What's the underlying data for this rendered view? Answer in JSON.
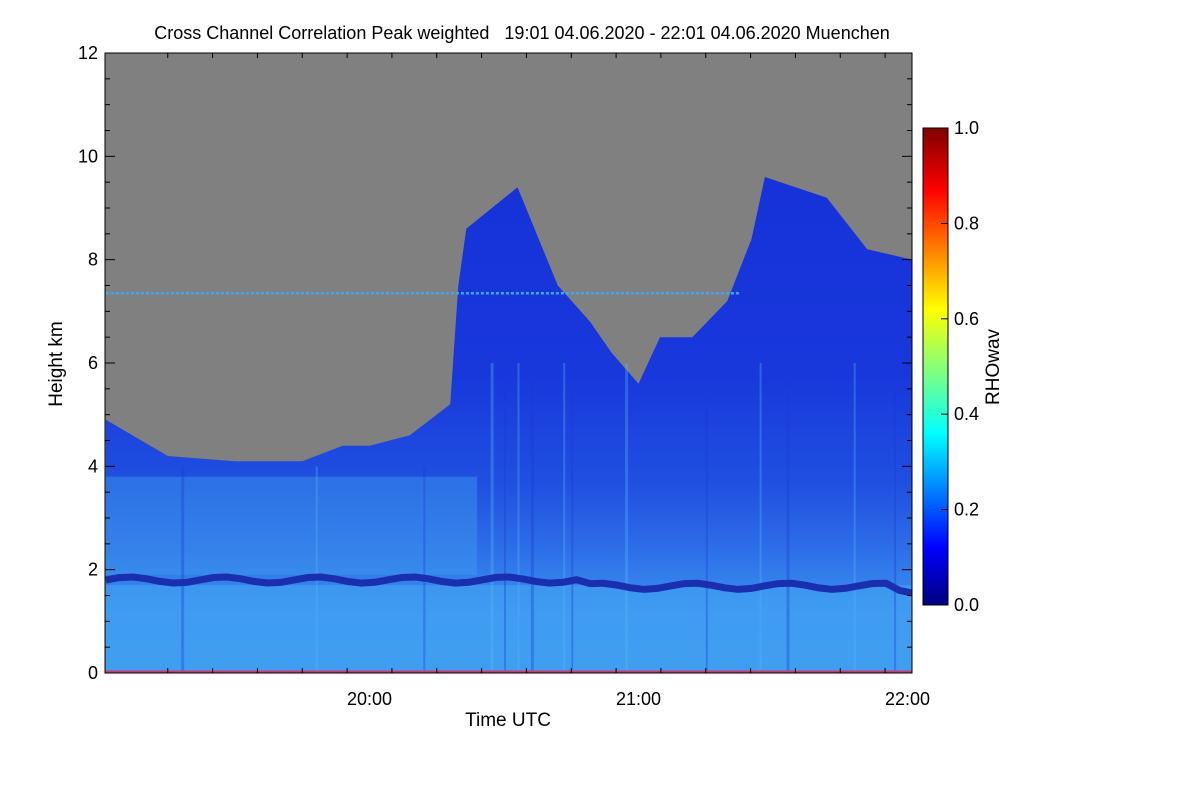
{
  "chart_data": {
    "type": "heatmap",
    "title": "Cross Channel Correlation Peak weighted   19:01 04.06.2020 - 22:01 04.06.2020 Muenchen",
    "xlabel": "Time UTC",
    "ylabel": "Height km",
    "x_range_hours": [
      19.0167,
      22.0167
    ],
    "ylim": [
      0,
      12
    ],
    "x_ticks": [
      {
        "value": 20,
        "label": "20:00"
      },
      {
        "value": 21,
        "label": "21:00"
      },
      {
        "value": 22,
        "label": "22:00"
      }
    ],
    "y_ticks": [
      {
        "value": 0,
        "label": "0"
      },
      {
        "value": 2,
        "label": "2"
      },
      {
        "value": 4,
        "label": "4"
      },
      {
        "value": 6,
        "label": "6"
      },
      {
        "value": 8,
        "label": "8"
      },
      {
        "value": 10,
        "label": "10"
      },
      {
        "value": 12,
        "label": "12"
      }
    ],
    "colorbar": {
      "label": "RHOwav",
      "range": [
        0,
        1
      ],
      "colormap": "jet",
      "ticks": [
        {
          "value": 0.0,
          "label": "0.0"
        },
        {
          "value": 0.2,
          "label": "0.2"
        },
        {
          "value": 0.4,
          "label": "0.4"
        },
        {
          "value": 0.6,
          "label": "0.6"
        },
        {
          "value": 0.8,
          "label": "0.8"
        },
        {
          "value": 1.0,
          "label": "1.0"
        }
      ],
      "placement": "right"
    },
    "no_data_color": "#808080",
    "signal_top_km": [
      [
        19.02,
        4.9
      ],
      [
        19.25,
        4.2
      ],
      [
        19.5,
        4.1
      ],
      [
        19.75,
        4.1
      ],
      [
        19.9,
        4.4
      ],
      [
        20.0,
        4.4
      ],
      [
        20.15,
        4.6
      ],
      [
        20.3,
        5.2
      ],
      [
        20.33,
        7.5
      ],
      [
        20.36,
        8.6
      ],
      [
        20.55,
        9.4
      ],
      [
        20.7,
        7.5
      ],
      [
        20.82,
        6.8
      ],
      [
        20.9,
        6.2
      ],
      [
        21.0,
        5.6
      ],
      [
        21.08,
        6.5
      ],
      [
        21.2,
        6.5
      ],
      [
        21.33,
        7.2
      ],
      [
        21.42,
        8.4
      ],
      [
        21.47,
        9.6
      ],
      [
        21.7,
        9.2
      ],
      [
        21.85,
        8.2
      ],
      [
        22.02,
        8.0
      ]
    ],
    "features": [
      {
        "name": "elevated layer",
        "height_km": 7.35,
        "x_range_hours": [
          19.02,
          21.38
        ],
        "value": 0.35
      },
      {
        "name": "aerosol layer top",
        "height_km": 1.8,
        "x_range_hours": [
          19.02,
          22.02
        ],
        "value": 0.08
      },
      {
        "name": "boundary layer",
        "height_range_km": [
          0,
          1.7
        ],
        "value": 0.33
      },
      {
        "name": "residual layer",
        "height_range_km": [
          1.9,
          3.8
        ],
        "value": 0.27
      },
      {
        "name": "free troposphere",
        "height_range_km": [
          3.8,
          9.6
        ],
        "value": 0.12
      }
    ]
  }
}
